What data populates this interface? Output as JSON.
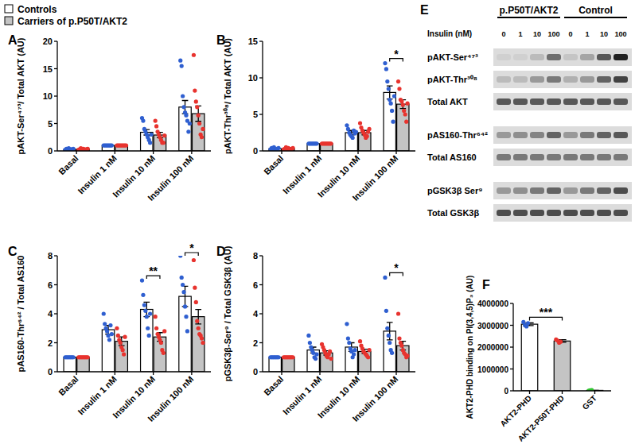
{
  "chart_data": [
    {
      "type": "bar",
      "title": "A",
      "ylabel": "pAKT-Ser⁴⁷³/ Total AKT (AU)",
      "categories": [
        "Basal",
        "Insulin 1 nM",
        "Insulin 10 nM",
        "Insulin 100 nM"
      ],
      "ylim": [
        0,
        20
      ],
      "yticks": [
        0,
        5,
        10,
        15,
        20
      ],
      "series": [
        {
          "name": "Controls",
          "type": "bar",
          "color": "#ffffff",
          "values": [
            0.3,
            1.0,
            3.4,
            8.0
          ],
          "errors": [
            0.1,
            0.05,
            0.5,
            1.2
          ]
        },
        {
          "name": "Carriers of p.P50T/AKT2",
          "type": "bar",
          "color": "#c4c4c4",
          "values": [
            0.3,
            1.0,
            2.9,
            6.8
          ],
          "errors": [
            0.1,
            0.05,
            0.5,
            1.4
          ]
        },
        {
          "type": "scatter",
          "marker": "circle",
          "color": "#2f5fd0",
          "values": [
            [
              0.2,
              0.4,
              0.3,
              0.5,
              0.1,
              0.3,
              0.2,
              0.4
            ],
            [
              1,
              1,
              1,
              1,
              1,
              1,
              1,
              1
            ],
            [
              6.0,
              5.5,
              4.0,
              3.5,
              3.0,
              2.5,
              2.0,
              1.5,
              3.0
            ],
            [
              16.5,
              15.5,
              10.0,
              8.0,
              7.0,
              6.5,
              5.5,
              3.5,
              5.0
            ]
          ]
        },
        {
          "type": "scatter",
          "marker": "circle",
          "color": "#e8332e",
          "values": [
            [
              0.2,
              0.3,
              0.5,
              0.1,
              0.4,
              0.3,
              0.2,
              0.3,
              0.4
            ],
            [
              1,
              1,
              1,
              1,
              1,
              1,
              1,
              1,
              1
            ],
            [
              5.5,
              4.5,
              3.5,
              3.0,
              2.5,
              2.0,
              1.5,
              1.5,
              2.8
            ],
            [
              17.5,
              11.0,
              9.0,
              8.0,
              6.5,
              5.0,
              3.0,
              2.5,
              4.0
            ]
          ]
        }
      ],
      "annotations": []
    },
    {
      "type": "bar",
      "title": "B",
      "ylabel": "pAKT-Thr³⁰⁸/ Total AKT (AU)",
      "categories": [
        "Basal",
        "Insulin 1 nM",
        "Insulin 10 nM",
        "Insulin 100 nM"
      ],
      "ylim": [
        0,
        15
      ],
      "yticks": [
        0,
        5,
        10,
        15
      ],
      "series": [
        {
          "name": "Controls",
          "type": "bar",
          "color": "#ffffff",
          "values": [
            0.3,
            1.0,
            2.5,
            8.0
          ],
          "errors": [
            0.1,
            0.05,
            0.3,
            0.9
          ]
        },
        {
          "name": "Carriers of p.P50T/AKT2",
          "type": "bar",
          "color": "#c4c4c4",
          "values": [
            0.3,
            1.0,
            2.5,
            6.4
          ],
          "errors": [
            0.1,
            0.05,
            0.3,
            0.6
          ]
        },
        {
          "type": "scatter",
          "marker": "circle",
          "color": "#2f5fd0",
          "values": [
            [
              0.2,
              0.4,
              0.3,
              0.5,
              0.1,
              0.3,
              0.2,
              0.4
            ],
            [
              1,
              1,
              1,
              1,
              1,
              1,
              1,
              1
            ],
            [
              3.5,
              3.0,
              2.5,
              2.2,
              2.0,
              1.8,
              2.8,
              2.4,
              2.6
            ],
            [
              12.0,
              11.2,
              9.5,
              8.5,
              7.0,
              6.5,
              5.5,
              4.0,
              7.5
            ]
          ]
        },
        {
          "type": "scatter",
          "marker": "circle",
          "color": "#e8332e",
          "values": [
            [
              0.2,
              0.3,
              0.5,
              0.1,
              0.4,
              0.3,
              0.2,
              0.3,
              0.4
            ],
            [
              1,
              1,
              1,
              1,
              1,
              1,
              1,
              1,
              1
            ],
            [
              3.8,
              3.2,
              2.8,
              2.5,
              2.2,
              1.8,
              2.0,
              2.6,
              3.0
            ],
            [
              9.5,
              8.5,
              7.0,
              6.8,
              6.3,
              5.5,
              5.0,
              4.0,
              6.5
            ]
          ]
        }
      ],
      "annotations": [
        {
          "text": "*",
          "category": "Insulin 100 nM"
        }
      ]
    },
    {
      "type": "bar",
      "title": "C",
      "ylabel": "pAS160-Thr⁶⁴² / Total AS160",
      "categories": [
        "Basal",
        "Insulin 1 nM",
        "Insulin 10 nM",
        "Insulin 100 nM"
      ],
      "ylim": [
        0,
        8
      ],
      "yticks": [
        0,
        2,
        4,
        6,
        8
      ],
      "series": [
        {
          "name": "Controls",
          "type": "bar",
          "color": "#ffffff",
          "values": [
            1,
            2.9,
            4.3,
            5.2
          ],
          "errors": [
            0.02,
            0.3,
            0.5,
            0.7
          ]
        },
        {
          "name": "Carriers of p.P50T/AKT2",
          "type": "bar",
          "color": "#c4c4c4",
          "values": [
            1,
            2.1,
            2.4,
            3.8
          ],
          "errors": [
            0.02,
            0.3,
            0.3,
            0.5
          ]
        },
        {
          "type": "scatter",
          "marker": "circle",
          "color": "#2f5fd0",
          "values": [
            [
              1,
              1,
              1,
              1,
              1,
              1,
              1,
              1
            ],
            [
              4.0,
              3.3,
              3.0,
              2.8,
              2.5,
              2.2,
              3.2,
              2.6
            ],
            [
              6.3,
              5.3,
              4.6,
              4.2,
              3.8,
              3.0,
              2.5,
              4.0
            ],
            [
              8.0,
              6.5,
              6.0,
              5.5,
              4.5,
              3.8,
              2.8
            ]
          ]
        },
        {
          "type": "scatter",
          "marker": "circle",
          "color": "#e8332e",
          "values": [
            [
              1,
              1,
              1,
              1,
              1,
              1,
              1,
              1,
              1
            ],
            [
              3.0,
              2.5,
              2.2,
              2.0,
              1.7,
              1.5,
              1.2,
              2.4
            ],
            [
              3.8,
              3.0,
              2.6,
              2.4,
              2.2,
              2.0,
              1.5,
              1.3,
              2.8
            ],
            [
              7.7,
              5.8,
              4.8,
              3.5,
              3.0,
              2.6,
              2.5,
              2.3,
              2.0
            ]
          ]
        }
      ],
      "annotations": [
        {
          "text": "**",
          "category": "Insulin 10 nM"
        },
        {
          "text": "*",
          "category": "Insulin 100 nM"
        }
      ]
    },
    {
      "type": "bar",
      "title": "D",
      "ylabel": "pGSK3β-Ser⁹ / Total GSK3β (AU)",
      "categories": [
        "Basal",
        "Insulin 1 nM",
        "Insulin 10 nM",
        "Insulin 100 nM"
      ],
      "ylim": [
        0,
        8
      ],
      "yticks": [
        0,
        2,
        4,
        6,
        8
      ],
      "series": [
        {
          "name": "Controls",
          "type": "bar",
          "color": "#ffffff",
          "values": [
            1,
            1.5,
            1.7,
            2.8
          ],
          "errors": [
            0.02,
            0.2,
            0.3,
            0.6
          ]
        },
        {
          "name": "Carriers of p.P50T/AKT2",
          "type": "bar",
          "color": "#c4c4c4",
          "values": [
            1,
            1.3,
            1.4,
            1.8
          ],
          "errors": [
            0.02,
            0.15,
            0.15,
            0.3
          ]
        },
        {
          "type": "scatter",
          "marker": "circle",
          "color": "#2f5fd0",
          "values": [
            [
              1,
              1,
              1,
              1,
              1,
              1,
              1,
              1
            ],
            [
              2.5,
              2.0,
              1.7,
              1.5,
              1.3,
              1.0,
              0.9,
              1.2
            ],
            [
              3.3,
              2.3,
              2.0,
              1.6,
              1.4,
              1.0,
              1.2,
              1.5
            ],
            [
              6.5,
              4.2,
              3.0,
              2.5,
              2.0,
              1.5,
              1.3
            ]
          ]
        },
        {
          "type": "scatter",
          "marker": "circle",
          "color": "#e8332e",
          "values": [
            [
              1,
              1,
              1,
              1,
              1,
              1,
              1,
              1,
              1
            ],
            [
              1.9,
              1.7,
              1.5,
              1.3,
              1.1,
              1.0,
              1.2,
              1.4,
              0.9
            ],
            [
              2.1,
              1.8,
              1.6,
              1.4,
              1.3,
              1.2,
              1.1,
              1.0,
              1.5
            ],
            [
              4.0,
              2.3,
              2.0,
              1.8,
              1.5,
              1.3,
              1.2,
              1.0,
              1.1
            ]
          ]
        }
      ],
      "annotations": [
        {
          "text": "*",
          "category": "Insulin 100 nM"
        }
      ]
    },
    {
      "type": "bar",
      "title": "F",
      "ylabel": "AKT2-PHD binding on PI(3,4,5)P₃ (AU)",
      "categories": [
        "AKT2-PHD",
        "AKT2-P50T-PHD",
        "GST"
      ],
      "ylim": [
        0,
        4000000
      ],
      "yticks": [
        0,
        1000000,
        2000000,
        3000000,
        4000000
      ],
      "series": [
        {
          "type": "bar",
          "colors": [
            "#ffffff",
            "#c4c4c4",
            "#ffffff"
          ],
          "values": [
            3050000,
            2280000,
            20000
          ],
          "errors": [
            60000,
            60000,
            5000
          ]
        },
        {
          "type": "scatter",
          "marker": "circle",
          "colors": [
            "#2f5fd0",
            "#e8332e",
            "#2ec42e"
          ],
          "values": [
            [
              3150000,
              3000000,
              2950000,
              3100000
            ],
            [
              2350000,
              2300000,
              2200000,
              2250000
            ],
            [
              10000,
              20000,
              30000
            ]
          ]
        }
      ],
      "annotations": [
        {
          "text": "***",
          "from": "AKT2-PHD",
          "to": "AKT2-P50T-PHD"
        }
      ]
    }
  ],
  "blot": {
    "title": "E",
    "lane_title": "Insulin (nM)",
    "groups": [
      {
        "label": "p.P50T/AKT2",
        "lanes": [
          0,
          1,
          10,
          100
        ]
      },
      {
        "label": "Control",
        "lanes": [
          0,
          1,
          10,
          100
        ]
      }
    ],
    "rows": [
      {
        "label": "pAKT-Ser⁴⁷³",
        "intensity": [
          0.05,
          0.05,
          0.15,
          0.5,
          0.1,
          0.25,
          0.6,
          0.85
        ]
      },
      {
        "label": "pAKT-Thr³⁰⁸",
        "intensity": [
          0.15,
          0.15,
          0.3,
          0.45,
          0.2,
          0.3,
          0.55,
          0.7
        ]
      },
      {
        "label": "Total AKT",
        "intensity": [
          0.6,
          0.6,
          0.6,
          0.6,
          0.6,
          0.6,
          0.6,
          0.6
        ]
      },
      {
        "label": "pAS160-Thr⁶⁴²",
        "intensity": [
          0.3,
          0.35,
          0.4,
          0.55,
          0.3,
          0.45,
          0.55,
          0.6
        ]
      },
      {
        "label": "Total AS160",
        "intensity": [
          0.45,
          0.45,
          0.45,
          0.45,
          0.45,
          0.45,
          0.45,
          0.45
        ]
      },
      {
        "label": "pGSK3β Ser⁹",
        "intensity": [
          0.3,
          0.35,
          0.45,
          0.55,
          0.3,
          0.45,
          0.55,
          0.65
        ]
      },
      {
        "label": "Total GSK3β",
        "intensity": [
          0.65,
          0.65,
          0.65,
          0.65,
          0.65,
          0.65,
          0.65,
          0.65
        ]
      }
    ]
  }
}
